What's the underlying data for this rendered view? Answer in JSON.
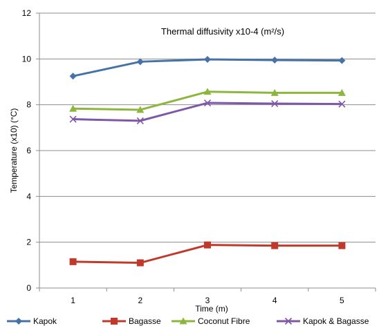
{
  "chart_data": {
    "type": "line",
    "title": "Thermal diffusivity x10-4 (m²/s)",
    "xlabel": "Time (m)",
    "ylabel": "Temperature (x10) (°C)",
    "categories": [
      "1",
      "2",
      "3",
      "4",
      "5"
    ],
    "ylim": [
      0,
      12
    ],
    "yticks": [
      0,
      2,
      4,
      6,
      8,
      10,
      12
    ],
    "grid": "horizontal",
    "legend_position": "bottom",
    "series": [
      {
        "name": "Kapok",
        "values": [
          9.25,
          9.88,
          9.98,
          9.95,
          9.93
        ],
        "color": "#4572A7",
        "marker": "diamond"
      },
      {
        "name": "Bagasse",
        "values": [
          1.15,
          1.1,
          1.88,
          1.85,
          1.85
        ],
        "color": "#C0392B",
        "marker": "square"
      },
      {
        "name": "Coconut Fibre",
        "values": [
          7.83,
          7.78,
          8.57,
          8.52,
          8.52
        ],
        "color": "#8DB63C",
        "marker": "triangle"
      },
      {
        "name": "Kapok & Bagasse",
        "values": [
          7.37,
          7.3,
          8.08,
          8.05,
          8.03
        ],
        "color": "#7E57A8",
        "marker": "x"
      }
    ]
  }
}
